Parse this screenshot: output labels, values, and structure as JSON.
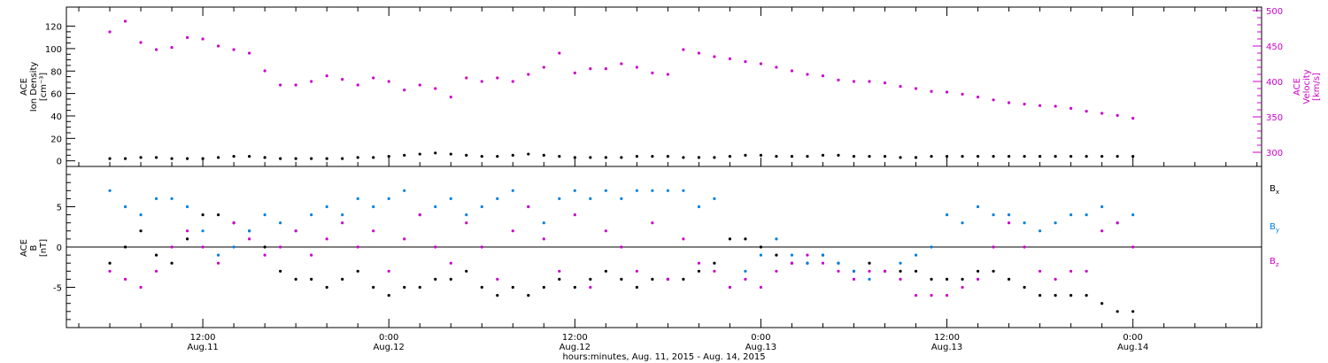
{
  "chart_data": [
    {
      "type": "scatter",
      "panel": "top",
      "ylabel_left": [
        "ACE",
        "Ion Density",
        "[cm⁻³]"
      ],
      "ylabel_right": [
        "ACE",
        "Velocity",
        "[km/s]"
      ],
      "yticks_left": [
        "0",
        "20",
        "40",
        "60",
        "80",
        "100",
        "120"
      ],
      "yticks_right": [
        "300",
        "350",
        "400",
        "450",
        "500"
      ],
      "ylim_left": [
        -5,
        137
      ],
      "ylim_right": [
        280,
        505
      ],
      "series": [
        {
          "name": "",
          "axis": "left",
          "color": "#000000",
          "x": [
            0,
            1,
            2,
            3,
            4,
            5,
            6,
            7,
            8,
            9,
            10,
            11,
            12,
            13,
            14,
            15,
            16,
            17,
            18,
            19,
            20,
            21,
            22,
            23,
            24,
            25,
            26,
            27,
            28,
            29,
            30,
            31,
            32,
            33,
            34,
            35,
            36,
            37,
            38,
            39,
            40,
            41,
            42,
            43,
            44,
            45,
            46,
            47,
            48,
            49,
            50,
            51,
            52,
            53,
            54,
            55,
            56,
            57,
            58,
            59,
            60,
            61,
            62,
            63,
            64,
            65,
            66
          ],
          "y": [
            2,
            2,
            3,
            3,
            2,
            2,
            2,
            3,
            4,
            4,
            3,
            2,
            2,
            2,
            2,
            2,
            3,
            3,
            4,
            5,
            6,
            7,
            6,
            5,
            4,
            4,
            5,
            6,
            5,
            4,
            3,
            3,
            3,
            3,
            4,
            4,
            4,
            3,
            3,
            3,
            4,
            5,
            5,
            4,
            4,
            4,
            5,
            5,
            4,
            4,
            4,
            3,
            3,
            4,
            4,
            4,
            4,
            4,
            4,
            4,
            4,
            4,
            4,
            4,
            4,
            4,
            4
          ]
        },
        {
          "name": "",
          "axis": "right",
          "color": "#cc00cc",
          "x": [
            0,
            1,
            2,
            3,
            4,
            5,
            6,
            7,
            8,
            9,
            10,
            11,
            12,
            13,
            14,
            15,
            16,
            17,
            18,
            19,
            20,
            21,
            22,
            23,
            24,
            25,
            26,
            27,
            28,
            29,
            30,
            31,
            32,
            33,
            34,
            35,
            36,
            37,
            38,
            39,
            40,
            41,
            42,
            43,
            44,
            45,
            46,
            47,
            48,
            49,
            50,
            51,
            52,
            53,
            54,
            55,
            56,
            57,
            58,
            59,
            60,
            61,
            62,
            63,
            64,
            65,
            66
          ],
          "y": [
            470,
            485,
            455,
            445,
            448,
            462,
            460,
            450,
            445,
            440,
            415,
            395,
            395,
            400,
            408,
            403,
            395,
            405,
            400,
            388,
            395,
            390,
            378,
            405,
            400,
            405,
            400,
            410,
            420,
            440,
            412,
            418,
            418,
            425,
            420,
            412,
            410,
            445,
            440,
            435,
            432,
            428,
            425,
            420,
            415,
            410,
            408,
            402,
            400,
            400,
            398,
            393,
            390,
            386,
            385,
            382,
            378,
            374,
            370,
            368,
            366,
            365,
            362,
            358,
            355,
            352,
            348
          ]
        }
      ]
    },
    {
      "type": "scatter",
      "panel": "bottom",
      "ylabel_left": [
        "ACE",
        "B",
        "[nT]"
      ],
      "yticks_left": [
        "-5",
        "0",
        "5"
      ],
      "ylim_left": [
        -10,
        10
      ],
      "legend": [
        "Bx",
        "By",
        "Bz"
      ],
      "series": [
        {
          "name": "Bx",
          "color": "#000000",
          "x": [
            0,
            1,
            2,
            3,
            4,
            5,
            6,
            7,
            8,
            9,
            10,
            11,
            12,
            13,
            14,
            15,
            16,
            17,
            18,
            19,
            20,
            21,
            22,
            23,
            24,
            25,
            26,
            27,
            28,
            29,
            30,
            31,
            32,
            33,
            34,
            35,
            36,
            37,
            38,
            39,
            40,
            41,
            42,
            43,
            44,
            45,
            46,
            47,
            48,
            49,
            50,
            51,
            52,
            53,
            54,
            55,
            56,
            57,
            58,
            59,
            60,
            61,
            62,
            63,
            64,
            65,
            66
          ],
          "y": [
            -2,
            0,
            2,
            -1,
            -2,
            1,
            4,
            4,
            3,
            2,
            0,
            -3,
            -4,
            -4,
            -5,
            -4,
            -3,
            -5,
            -6,
            -5,
            -5,
            -4,
            -4,
            -3,
            -5,
            -6,
            -5,
            -6,
            -5,
            -4,
            -5,
            -4,
            -3,
            -4,
            -5,
            -4,
            -4,
            -4,
            -3,
            -2,
            1,
            1,
            0,
            -1,
            -2,
            -2,
            -1,
            -2,
            -3,
            -2,
            -3,
            -3,
            -3,
            -4,
            -4,
            -4,
            -3,
            -3,
            -4,
            -5,
            -6,
            -6,
            -6,
            -6,
            -7,
            -8,
            -8
          ]
        },
        {
          "name": "By",
          "color": "#0080e0",
          "x": [
            0,
            1,
            2,
            3,
            4,
            5,
            6,
            7,
            8,
            9,
            10,
            11,
            12,
            13,
            14,
            15,
            16,
            17,
            18,
            19,
            20,
            21,
            22,
            23,
            24,
            25,
            26,
            27,
            28,
            29,
            30,
            31,
            32,
            33,
            34,
            35,
            36,
            37,
            38,
            39,
            40,
            41,
            42,
            43,
            44,
            45,
            46,
            47,
            48,
            49,
            50,
            51,
            52,
            53,
            54,
            55,
            56,
            57,
            58,
            59,
            60,
            61,
            62,
            63,
            64,
            65,
            66
          ],
          "y": [
            7,
            5,
            4,
            6,
            6,
            5,
            2,
            -1,
            0,
            2,
            4,
            3,
            2,
            4,
            5,
            4,
            6,
            5,
            6,
            7,
            4,
            5,
            6,
            4,
            5,
            6,
            7,
            5,
            3,
            6,
            7,
            6,
            7,
            6,
            7,
            7,
            7,
            7,
            5,
            6,
            -5,
            -3,
            -1,
            1,
            -1,
            -2,
            -1,
            -2,
            -3,
            -4,
            -3,
            -2,
            -1,
            0,
            4,
            3,
            5,
            4,
            4,
            3,
            2,
            3,
            4,
            4,
            5,
            3,
            4
          ]
        },
        {
          "name": "Bz",
          "color": "#cc00cc",
          "x": [
            0,
            1,
            2,
            3,
            4,
            5,
            6,
            7,
            8,
            9,
            10,
            11,
            12,
            13,
            14,
            15,
            16,
            17,
            18,
            19,
            20,
            21,
            22,
            23,
            24,
            25,
            26,
            27,
            28,
            29,
            30,
            31,
            32,
            33,
            34,
            35,
            36,
            37,
            38,
            39,
            40,
            41,
            42,
            43,
            44,
            45,
            46,
            47,
            48,
            49,
            50,
            51,
            52,
            53,
            54,
            55,
            56,
            57,
            58,
            59,
            60,
            61,
            62,
            63,
            64,
            65,
            66
          ],
          "y": [
            -3,
            -4,
            -5,
            -3,
            0,
            2,
            0,
            -2,
            3,
            1,
            -1,
            0,
            2,
            -1,
            1,
            3,
            0,
            2,
            -3,
            1,
            4,
            0,
            -2,
            3,
            0,
            -4,
            2,
            5,
            1,
            -3,
            4,
            -5,
            2,
            0,
            -3,
            3,
            -4,
            1,
            -2,
            -3,
            -5,
            -4,
            -5,
            -3,
            -2,
            -1,
            -2,
            -3,
            -4,
            -3,
            -3,
            -4,
            -6,
            -6,
            -6,
            -5,
            -4,
            0,
            3,
            0,
            -3,
            -4,
            -3,
            -3,
            2,
            3,
            0
          ]
        }
      ]
    }
  ],
  "x_axis": {
    "ticks": [
      {
        "x": 6,
        "line1": "12:00",
        "line2": "Aug.11"
      },
      {
        "x": 18,
        "line1": "0:00",
        "line2": "Aug.12"
      },
      {
        "x": 30,
        "line1": "12:00",
        "line2": "Aug.12"
      },
      {
        "x": 42,
        "line1": "0:00",
        "line2": "Aug.13"
      },
      {
        "x": 54,
        "line1": "12:00",
        "line2": "Aug.13"
      },
      {
        "x": 66,
        "line1": "0:00",
        "line2": "Aug.14"
      }
    ],
    "xlim": [
      -2.8,
      74.3
    ],
    "xlabel": "hours:minutes, Aug. 11, 2015 - Aug. 14, 2015"
  },
  "legend_labels": [
    {
      "base": "B",
      "sub": "x",
      "color": "#000000"
    },
    {
      "base": "B",
      "sub": "y",
      "color": "#0080e0"
    },
    {
      "base": "B",
      "sub": "z",
      "color": "#cc00cc"
    }
  ]
}
